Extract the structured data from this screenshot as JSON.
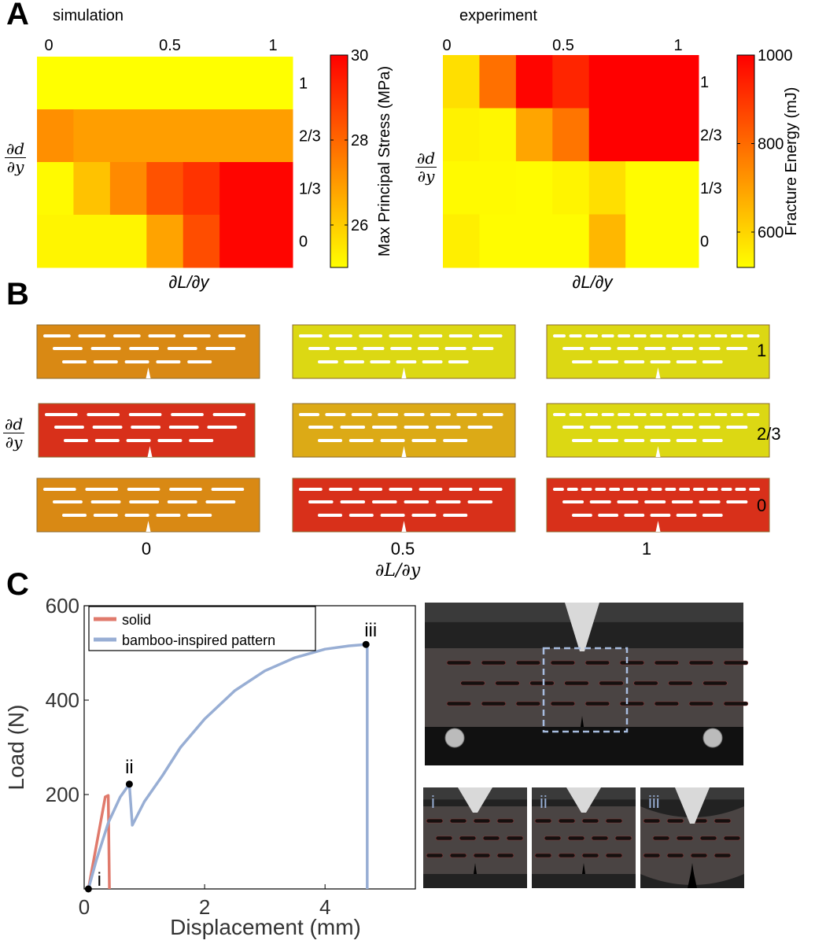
{
  "panels": {
    "a": "A",
    "b": "B",
    "c": "C"
  },
  "axis_labels": {
    "dd_num": "∂d",
    "dd_den": "∂y",
    "dL": "∂L/∂y"
  },
  "chart_data": [
    {
      "type": "heatmap",
      "title": "simulation",
      "x_ticks": [
        "0",
        "0.5",
        "1"
      ],
      "y_ticks": [
        "1",
        "2/3",
        "1/3",
        "0"
      ],
      "xlabel": "∂L/∂y",
      "ylabel": "∂d/∂y",
      "colorbar_label": "Max Principal Stress (MPa)",
      "colorbar_ticks": [
        "30",
        "28",
        "26"
      ],
      "colorbar_range": [
        25,
        30
      ],
      "columns": 7,
      "values": [
        [
          25.0,
          25.0,
          25.0,
          25.0,
          25.0,
          25.0,
          25.0
        ],
        [
          27.2,
          26.9,
          26.9,
          26.9,
          26.9,
          26.9,
          26.9
        ],
        [
          25.1,
          26.2,
          27.3,
          28.4,
          29.0,
          29.9,
          29.9
        ],
        [
          25.2,
          25.2,
          25.2,
          26.8,
          28.5,
          29.9,
          29.9
        ]
      ]
    },
    {
      "type": "heatmap",
      "title": "experiment",
      "x_ticks": [
        "0",
        "0.5",
        "1"
      ],
      "y_ticks": [
        "1",
        "2/3",
        "1/3",
        "0"
      ],
      "xlabel": "∂L/∂y",
      "ylabel": "∂d/∂y",
      "colorbar_label": "Fracture Energy (mJ)",
      "colorbar_ticks": [
        "1000",
        "800",
        "600"
      ],
      "colorbar_range": [
        520,
        1000
      ],
      "columns": 7,
      "values": [
        [
          580,
          790,
          990,
          930,
          1000,
          1000,
          1000
        ],
        [
          545,
          535,
          690,
          780,
          1000,
          1000,
          1000
        ],
        [
          530,
          530,
          525,
          540,
          580,
          525,
          525
        ],
        [
          550,
          525,
          525,
          525,
          655,
          525,
          525
        ]
      ]
    },
    {
      "type": "line",
      "xlabel": "Displacement (mm)",
      "ylabel": "Load (N)",
      "xlim": [
        0,
        5.5
      ],
      "ylim": [
        0,
        600
      ],
      "x_ticks": [
        "0",
        "2",
        "4"
      ],
      "y_ticks": [
        "200",
        "400",
        "600"
      ],
      "legend_position": "top-left",
      "series": [
        {
          "name": "solid",
          "color": "#e07a6c",
          "x": [
            0.07,
            0.35,
            0.4,
            0.42,
            0.42
          ],
          "y": [
            0,
            195,
            198,
            0,
            0
          ]
        },
        {
          "name": "bamboo-inspired pattern",
          "color": "#98aed4",
          "x": [
            0.07,
            0.2,
            0.4,
            0.6,
            0.75,
            0.8,
            1.0,
            1.3,
            1.6,
            2.0,
            2.5,
            3.0,
            3.5,
            4.0,
            4.4,
            4.68,
            4.7,
            4.7
          ],
          "y": [
            0,
            60,
            140,
            195,
            222,
            135,
            185,
            240,
            300,
            360,
            420,
            462,
            490,
            508,
            515,
            518,
            510,
            0
          ]
        }
      ],
      "markers": [
        {
          "label": "i",
          "x": 0.07,
          "y": 0
        },
        {
          "label": "ii",
          "x": 0.75,
          "y": 222
        },
        {
          "label": "iii",
          "x": 4.68,
          "y": 518
        }
      ]
    }
  ],
  "panel_b": {
    "row_labels": [
      "1",
      "2/3",
      "0"
    ],
    "col_labels": [
      "0",
      "0.5",
      "1"
    ],
    "xlabel": "∂L/∂y",
    "tiles": [
      [
        {
          "color": "#d98914",
          "slits": [
            6,
            5,
            5
          ]
        },
        {
          "color": "#dcd813",
          "slits": [
            7,
            7,
            6
          ]
        },
        {
          "color": "#dcd813",
          "slits": [
            13,
            7,
            6
          ]
        }
      ],
      [
        {
          "color": "#d8301a",
          "slits": [
            5,
            5,
            5
          ]
        },
        {
          "color": "#dcaa16",
          "slits": [
            8,
            6,
            5
          ]
        },
        {
          "color": "#dcd813",
          "slits": [
            13,
            7,
            6
          ]
        }
      ],
      [
        {
          "color": "#d98914",
          "slits": [
            5,
            5,
            5
          ]
        },
        {
          "color": "#d8301a",
          "slits": [
            7,
            6,
            5
          ]
        },
        {
          "color": "#d8301a",
          "slits": [
            15,
            7,
            6
          ]
        }
      ]
    ]
  },
  "photos": {
    "inset_labels": [
      "i",
      "ii",
      "iii"
    ]
  }
}
